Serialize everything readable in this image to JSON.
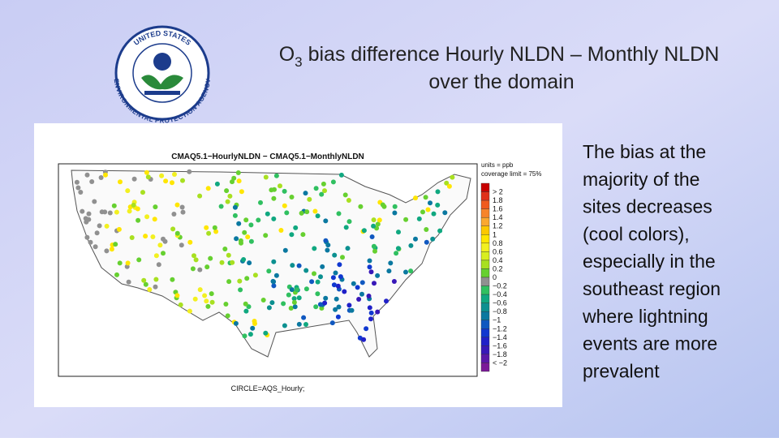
{
  "header": {
    "title_prefix": "O",
    "title_subscript": "3",
    "title_rest": " bias difference Hourly NLDN – Monthly NLDN",
    "title_line2": "over the domain"
  },
  "logo": {
    "top_text": "UNITED STATES",
    "bottom_text": "ENVIRONMENTAL PROTECTION AGENCY"
  },
  "map": {
    "title": "CMAQ5.1−HourlyNLDN − CMAQ5.1−MonthlyNLDN",
    "units": "units = ppb",
    "coverage": "coverage limit = 75%",
    "caption": "CIRCLE=AQS_Hourly;",
    "colorbar": {
      "labels": [
        "> 2",
        "1.8",
        "1.6",
        "1.4",
        "1.2",
        "1",
        "0.8",
        "0.6",
        "0.4",
        "0.2",
        "0",
        "−0.2",
        "−0.4",
        "−0.6",
        "−0.8",
        "−1",
        "−1.2",
        "−1.4",
        "−1.6",
        "−1.8",
        "< −2"
      ],
      "colors": [
        "#c80000",
        "#e0301a",
        "#f05a1e",
        "#f7842a",
        "#fba830",
        "#fdc800",
        "#ffe600",
        "#f2f020",
        "#d8ee20",
        "#a8e020",
        "#66d030",
        "#909090",
        "#30c060",
        "#10a880",
        "#0c9090",
        "#0a78a0",
        "#1058c0",
        "#1038d0",
        "#2020c8",
        "#3818b8",
        "#5a18a8",
        "#7a1a98"
      ]
    }
  },
  "body": {
    "lines": [
      "The bias at the",
      "majority of the",
      "sites decreases",
      "(cool colors),",
      "especially in the",
      "southeast region",
      "where lightning",
      "events are more",
      "prevalent"
    ]
  }
}
